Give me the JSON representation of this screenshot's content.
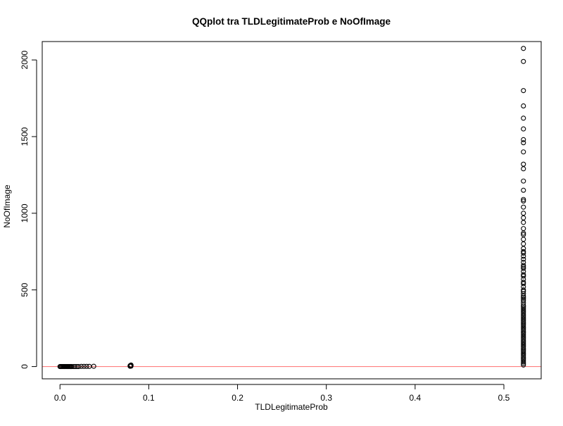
{
  "chart_data": {
    "type": "scatter",
    "title": "QQplot tra TLDLegitimateProb e NoOfImage",
    "xlabel": "TLDLegitimateProb",
    "ylabel": "NoOfImage",
    "xlim": [
      -0.02,
      0.542
    ],
    "ylim": [
      -80,
      2120
    ],
    "x_ticks": [
      0.0,
      0.1,
      0.2,
      0.3,
      0.4,
      0.5
    ],
    "x_tick_labels": [
      "0.0",
      "0.1",
      "0.2",
      "0.3",
      "0.4",
      "0.5"
    ],
    "y_ticks": [
      0,
      500,
      1000,
      1500,
      2000
    ],
    "y_tick_labels": [
      "0",
      "500",
      "1000",
      "1500",
      "2000"
    ],
    "grid": false,
    "legend": "none",
    "point_color": "#000000",
    "reference_line": {
      "type": "horizontal",
      "y": 0,
      "color": "#ff7f7f"
    },
    "points": [
      [
        0.0,
        0
      ],
      [
        0.001,
        0
      ],
      [
        0.002,
        0
      ],
      [
        0.003,
        0
      ],
      [
        0.004,
        0
      ],
      [
        0.005,
        0
      ],
      [
        0.006,
        0
      ],
      [
        0.007,
        0
      ],
      [
        0.008,
        0
      ],
      [
        0.009,
        0
      ],
      [
        0.01,
        0
      ],
      [
        0.011,
        0
      ],
      [
        0.012,
        0
      ],
      [
        0.013,
        0
      ],
      [
        0.015,
        0
      ],
      [
        0.017,
        0
      ],
      [
        0.019,
        0
      ],
      [
        0.021,
        0
      ],
      [
        0.024,
        1
      ],
      [
        0.027,
        1
      ],
      [
        0.03,
        1
      ],
      [
        0.033,
        1
      ],
      [
        0.038,
        2
      ],
      [
        0.079,
        2
      ],
      [
        0.079,
        4
      ],
      [
        0.079,
        6
      ],
      [
        0.08,
        8
      ],
      [
        0.08,
        10
      ],
      [
        0.08,
        3
      ],
      [
        0.522,
        2075
      ],
      [
        0.522,
        1990
      ],
      [
        0.522,
        1800
      ],
      [
        0.522,
        1700
      ],
      [
        0.522,
        1620
      ],
      [
        0.522,
        1550
      ],
      [
        0.522,
        1480
      ],
      [
        0.522,
        1460
      ],
      [
        0.522,
        1400
      ],
      [
        0.522,
        1320
      ],
      [
        0.522,
        1290
      ],
      [
        0.522,
        1210
      ],
      [
        0.522,
        1150
      ],
      [
        0.522,
        1090
      ],
      [
        0.522,
        1080
      ],
      [
        0.522,
        1040
      ],
      [
        0.522,
        1000
      ],
      [
        0.522,
        970
      ],
      [
        0.522,
        940
      ],
      [
        0.522,
        900
      ],
      [
        0.522,
        870
      ],
      [
        0.522,
        860
      ],
      [
        0.522,
        830
      ],
      [
        0.522,
        800
      ],
      [
        0.522,
        770
      ],
      [
        0.522,
        750
      ],
      [
        0.522,
        740
      ],
      [
        0.522,
        720
      ],
      [
        0.522,
        700
      ],
      [
        0.522,
        680
      ],
      [
        0.522,
        660
      ],
      [
        0.522,
        650
      ],
      [
        0.522,
        640
      ],
      [
        0.522,
        620
      ],
      [
        0.522,
        600
      ],
      [
        0.522,
        590
      ],
      [
        0.522,
        570
      ],
      [
        0.522,
        550
      ],
      [
        0.522,
        540
      ],
      [
        0.522,
        520
      ],
      [
        0.522,
        500
      ],
      [
        0.522,
        490
      ],
      [
        0.522,
        475
      ],
      [
        0.522,
        460
      ],
      [
        0.522,
        450
      ],
      [
        0.522,
        440
      ],
      [
        0.522,
        430
      ],
      [
        0.522,
        415
      ],
      [
        0.522,
        400
      ],
      [
        0.522,
        390
      ],
      [
        0.522,
        380
      ],
      [
        0.522,
        370
      ],
      [
        0.522,
        360
      ],
      [
        0.522,
        350
      ],
      [
        0.522,
        340
      ],
      [
        0.522,
        330
      ],
      [
        0.522,
        320
      ],
      [
        0.522,
        310
      ],
      [
        0.522,
        300
      ],
      [
        0.522,
        290
      ],
      [
        0.522,
        280
      ],
      [
        0.522,
        270
      ],
      [
        0.522,
        260
      ],
      [
        0.522,
        250
      ],
      [
        0.522,
        240
      ],
      [
        0.522,
        230
      ],
      [
        0.522,
        220
      ],
      [
        0.522,
        210
      ],
      [
        0.522,
        200
      ],
      [
        0.522,
        190
      ],
      [
        0.522,
        180
      ],
      [
        0.522,
        170
      ],
      [
        0.522,
        160
      ],
      [
        0.522,
        150
      ],
      [
        0.522,
        140
      ],
      [
        0.522,
        130
      ],
      [
        0.522,
        120
      ],
      [
        0.522,
        110
      ],
      [
        0.522,
        100
      ],
      [
        0.522,
        90
      ],
      [
        0.522,
        80
      ],
      [
        0.522,
        70
      ],
      [
        0.522,
        60
      ],
      [
        0.522,
        50
      ],
      [
        0.522,
        40
      ],
      [
        0.522,
        30
      ],
      [
        0.522,
        20
      ],
      [
        0.522,
        10
      ]
    ]
  }
}
